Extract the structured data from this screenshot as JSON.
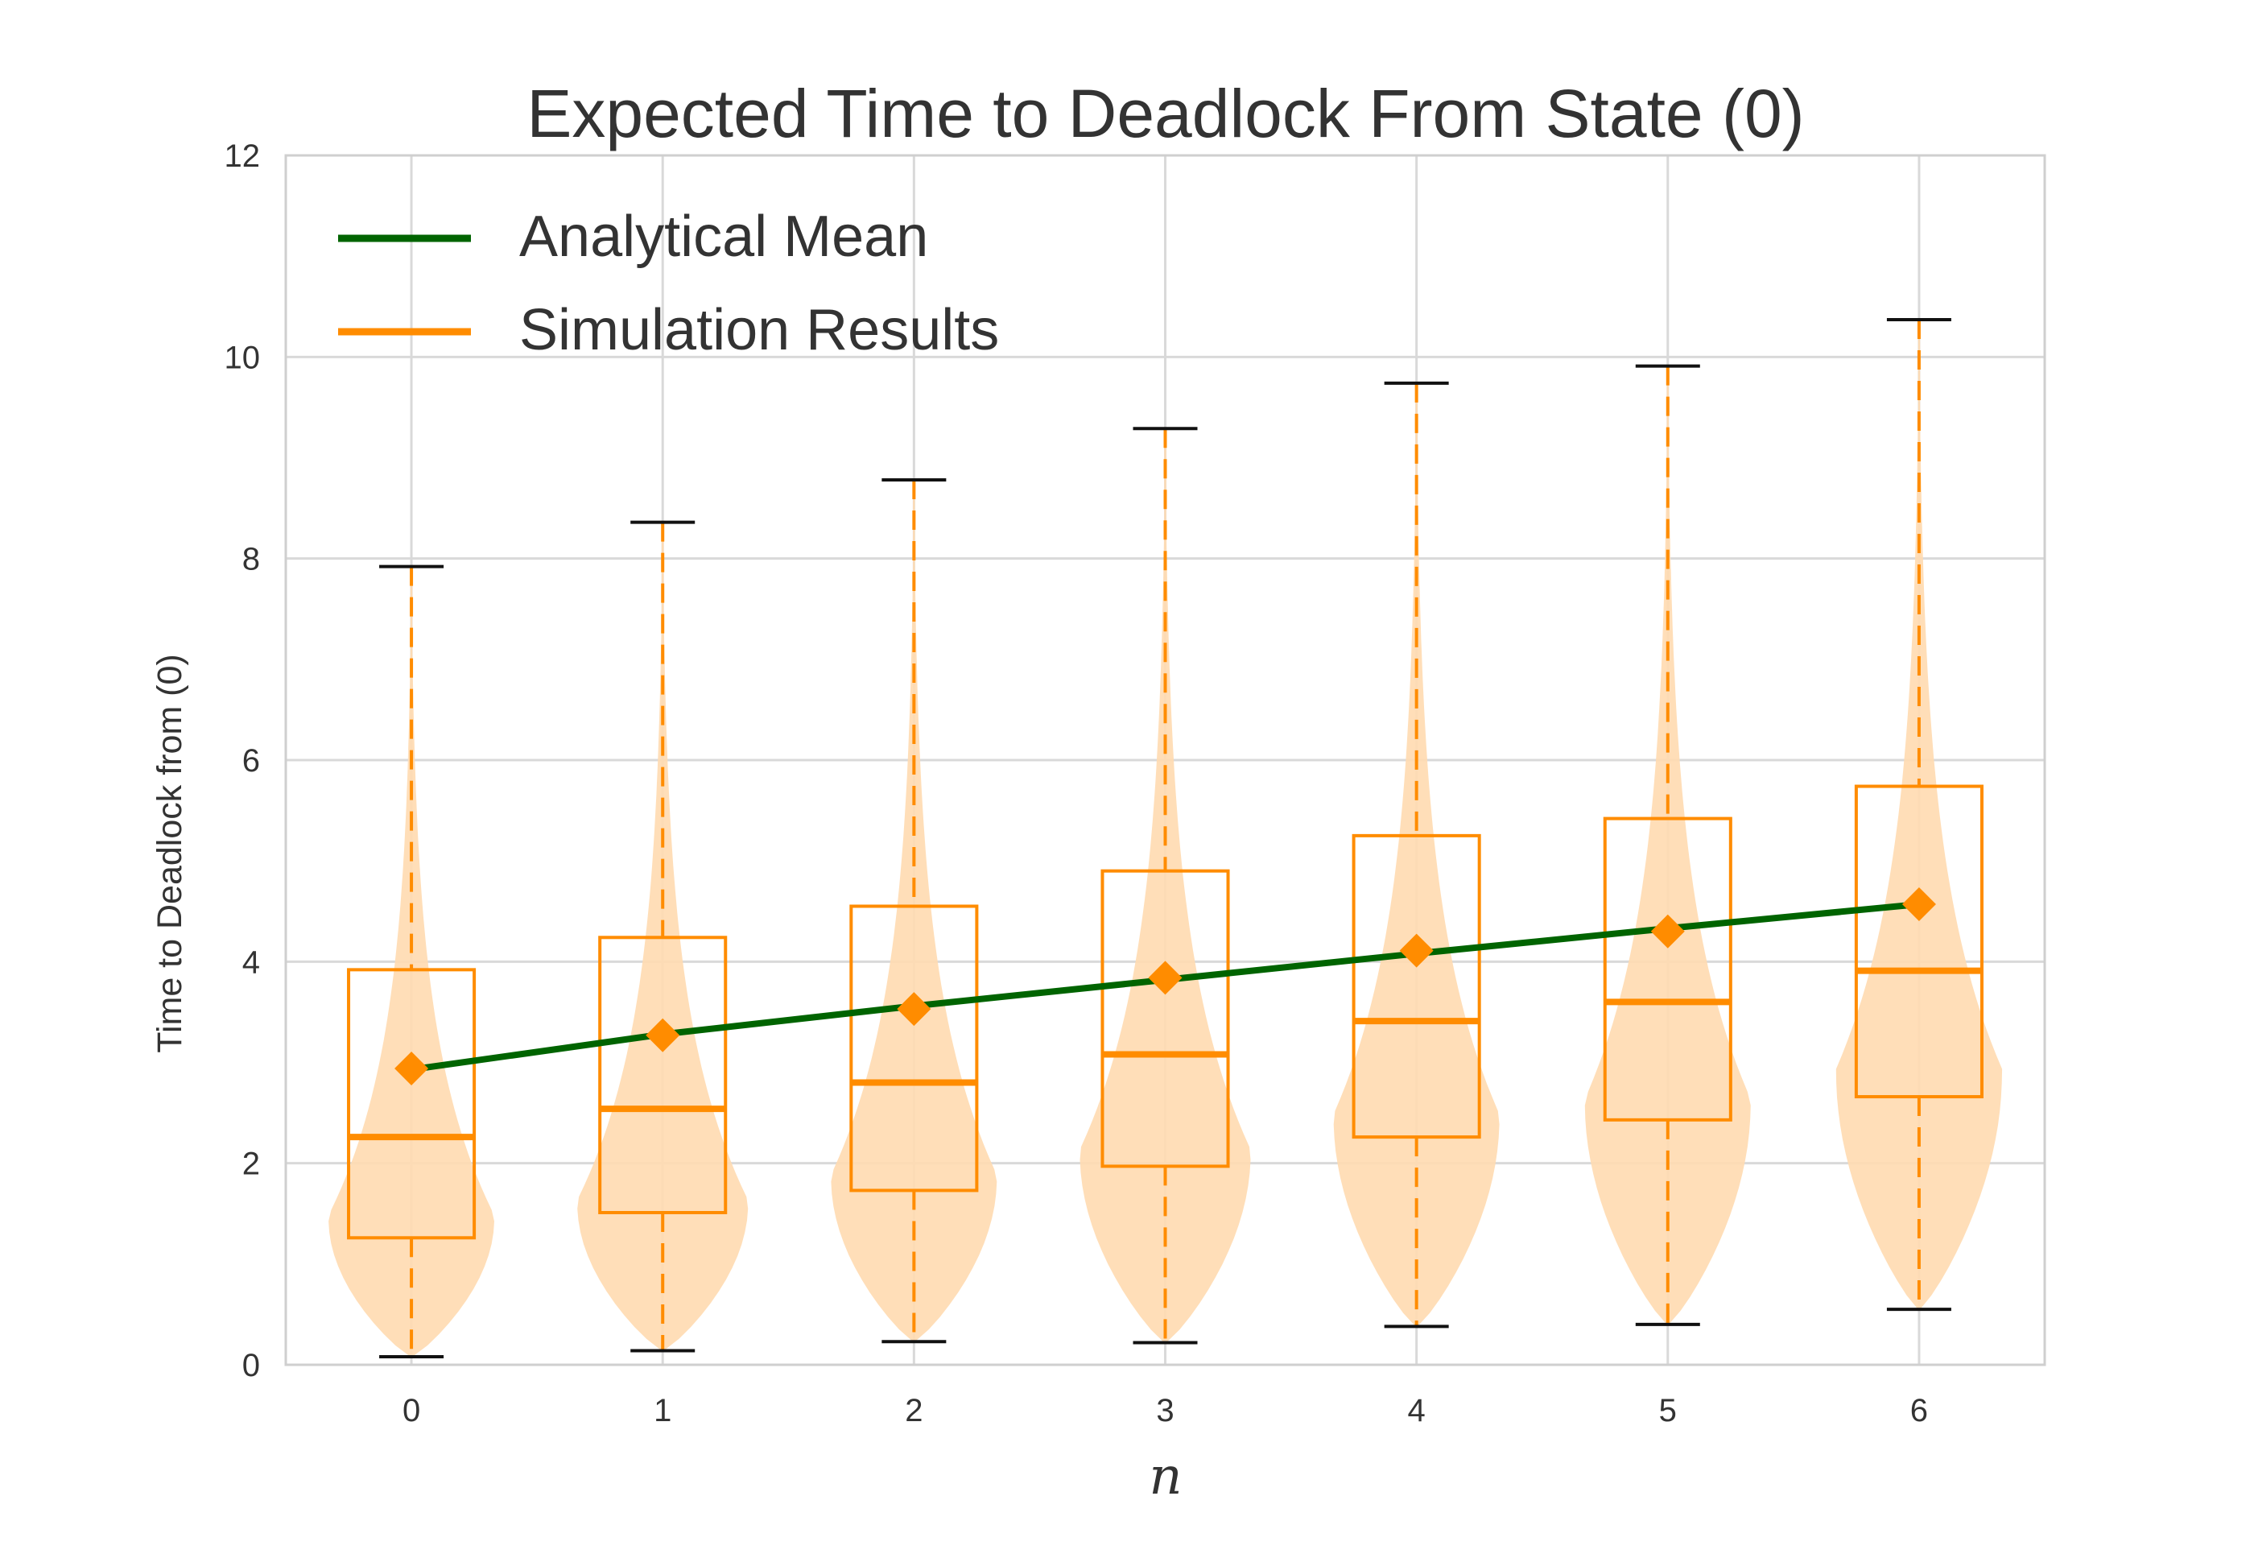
{
  "chart_data": {
    "type": "violin",
    "title": "Expected Time to Deadlock From State (0)",
    "xlabel": "n",
    "ylabel": "Time to Deadlock from (0)",
    "xlim": [
      -0.5,
      6.5
    ],
    "ylim": [
      0,
      12
    ],
    "x_ticks": [
      "0",
      "1",
      "2",
      "3",
      "4",
      "5",
      "6"
    ],
    "y_ticks": [
      "0",
      "2",
      "4",
      "6",
      "8",
      "10",
      "12"
    ],
    "grid": true,
    "legend": {
      "placement": "top-left",
      "entries": [
        {
          "label": "Analytical Mean",
          "color": "#006400"
        },
        {
          "label": "Simulation Results",
          "color": "#ff8c00"
        }
      ]
    },
    "colors": {
      "analytical": "#006400",
      "simulation": "#ff8c00",
      "violin_fill": "#ffdab0",
      "whisker_cap": "#111111",
      "grid": "#d9d9d9",
      "frame": "#cfcfcf"
    },
    "analytical_mean": {
      "name": "Analytical Mean",
      "x": [
        0,
        1,
        2,
        3,
        4,
        5,
        6
      ],
      "y": [
        2.93,
        3.28,
        3.56,
        3.82,
        4.08,
        4.33,
        4.57
      ]
    },
    "simulation": {
      "name": "Simulation Results",
      "groups": [
        {
          "x": 0,
          "min": 0.08,
          "q1": 1.26,
          "median": 2.26,
          "q3": 3.92,
          "max": 7.92,
          "mean": 2.94,
          "violin_peak": 1.45,
          "violin_width": 0.33
        },
        {
          "x": 1,
          "min": 0.14,
          "q1": 1.51,
          "median": 2.54,
          "q3": 4.24,
          "max": 8.36,
          "mean": 3.27,
          "violin_peak": 1.6,
          "violin_width": 0.34
        },
        {
          "x": 2,
          "min": 0.23,
          "q1": 1.73,
          "median": 2.8,
          "q3": 4.55,
          "max": 8.78,
          "mean": 3.53,
          "violin_peak": 1.85,
          "violin_width": 0.33
        },
        {
          "x": 3,
          "min": 0.22,
          "q1": 1.97,
          "median": 3.08,
          "q3": 4.9,
          "max": 9.29,
          "mean": 3.84,
          "violin_peak": 2.1,
          "violin_width": 0.34
        },
        {
          "x": 4,
          "min": 0.38,
          "q1": 2.26,
          "median": 3.41,
          "q3": 5.25,
          "max": 9.74,
          "mean": 4.11,
          "violin_peak": 2.45,
          "violin_width": 0.33
        },
        {
          "x": 5,
          "min": 0.4,
          "q1": 2.43,
          "median": 3.6,
          "q3": 5.42,
          "max": 9.91,
          "mean": 4.3,
          "violin_peak": 2.6,
          "violin_width": 0.33
        },
        {
          "x": 6,
          "min": 0.55,
          "q1": 2.66,
          "median": 3.91,
          "q3": 5.74,
          "max": 10.37,
          "mean": 4.57,
          "violin_peak": 2.9,
          "violin_width": 0.33
        }
      ]
    }
  }
}
